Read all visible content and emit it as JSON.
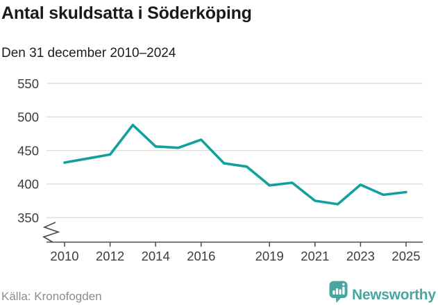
{
  "header": {
    "title": "Antal skuldsatta i Söderköping",
    "subtitle": "Den 31 december 2010–2024"
  },
  "footer": {
    "source": "Källa: Kronofogden",
    "brand_name": "Newsworthy"
  },
  "chart_data": {
    "type": "line",
    "title": "Antal skuldsatta i Söderköping",
    "subtitle": "Den 31 december 2010–2024",
    "x_plot_years": [
      2010,
      2011,
      2012,
      2013,
      2014,
      2015,
      2016,
      2017,
      2018,
      2019,
      2020,
      2021,
      2022,
      2023,
      2024,
      2025
    ],
    "values": [
      432,
      438,
      444,
      488,
      456,
      454,
      466,
      431,
      426,
      398,
      402,
      375,
      370,
      399,
      384,
      388
    ],
    "x_ticks": [
      {
        "year": 2010,
        "label": "2010"
      },
      {
        "year": 2012,
        "label": "2012"
      },
      {
        "year": 2014,
        "label": "2014"
      },
      {
        "year": 2016,
        "label": "2016"
      },
      {
        "year": 2019,
        "label": "2019"
      },
      {
        "year": 2021,
        "label": "2021"
      },
      {
        "year": 2023,
        "label": "2023"
      },
      {
        "year": 2025,
        "label": "2025"
      }
    ],
    "y_ticks": [
      550,
      500,
      450,
      400,
      350
    ],
    "ylim_shown": [
      330,
      565
    ],
    "y_axis_break": true,
    "grid": "horizontal",
    "legend": "none",
    "colors": {
      "line": "#12a09f",
      "grid": "#dcdcdc",
      "axis": "#4a4a4a",
      "tick_text": "#3d3d3d",
      "brand_teal": "#4aa5a0"
    }
  }
}
